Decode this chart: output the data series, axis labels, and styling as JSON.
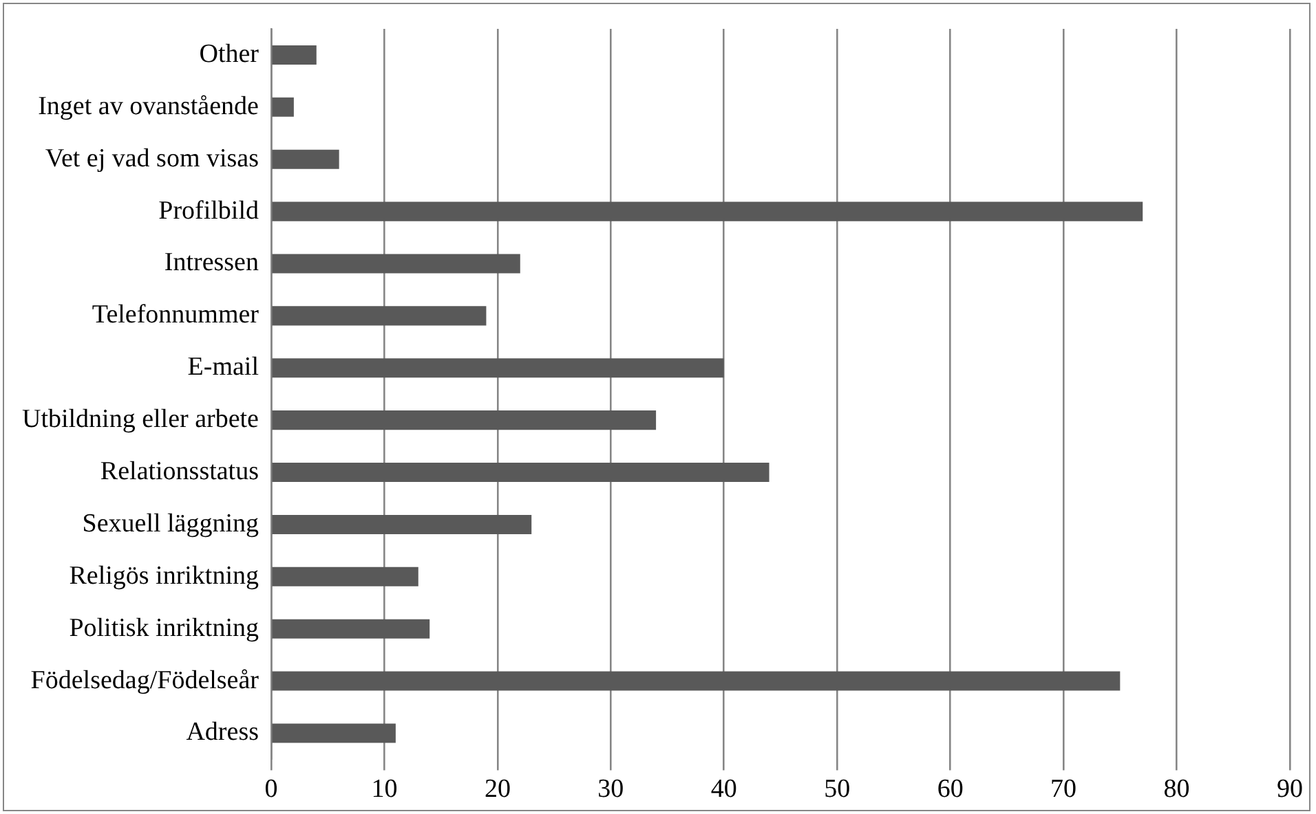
{
  "chart_data": {
    "type": "bar",
    "orientation": "horizontal",
    "categories": [
      "Other",
      "Inget av ovanstående",
      "Vet ej vad som visas",
      "Profilbild",
      "Intressen",
      "Telefonnummer",
      "E-mail",
      "Utbildning eller arbete",
      "Relationsstatus",
      "Sexuell läggning",
      "Religös inriktning",
      "Politisk inriktning",
      "Födelsedag/Födelseår",
      "Adress"
    ],
    "values": [
      4,
      2,
      6,
      77,
      22,
      19,
      40,
      34,
      44,
      23,
      13,
      14,
      75,
      11
    ],
    "color": "#595959",
    "xlim": [
      0,
      90
    ],
    "xticks": [
      0,
      10,
      20,
      30,
      40,
      50,
      60,
      70,
      80,
      90
    ],
    "grid": "x",
    "legend": false
  }
}
